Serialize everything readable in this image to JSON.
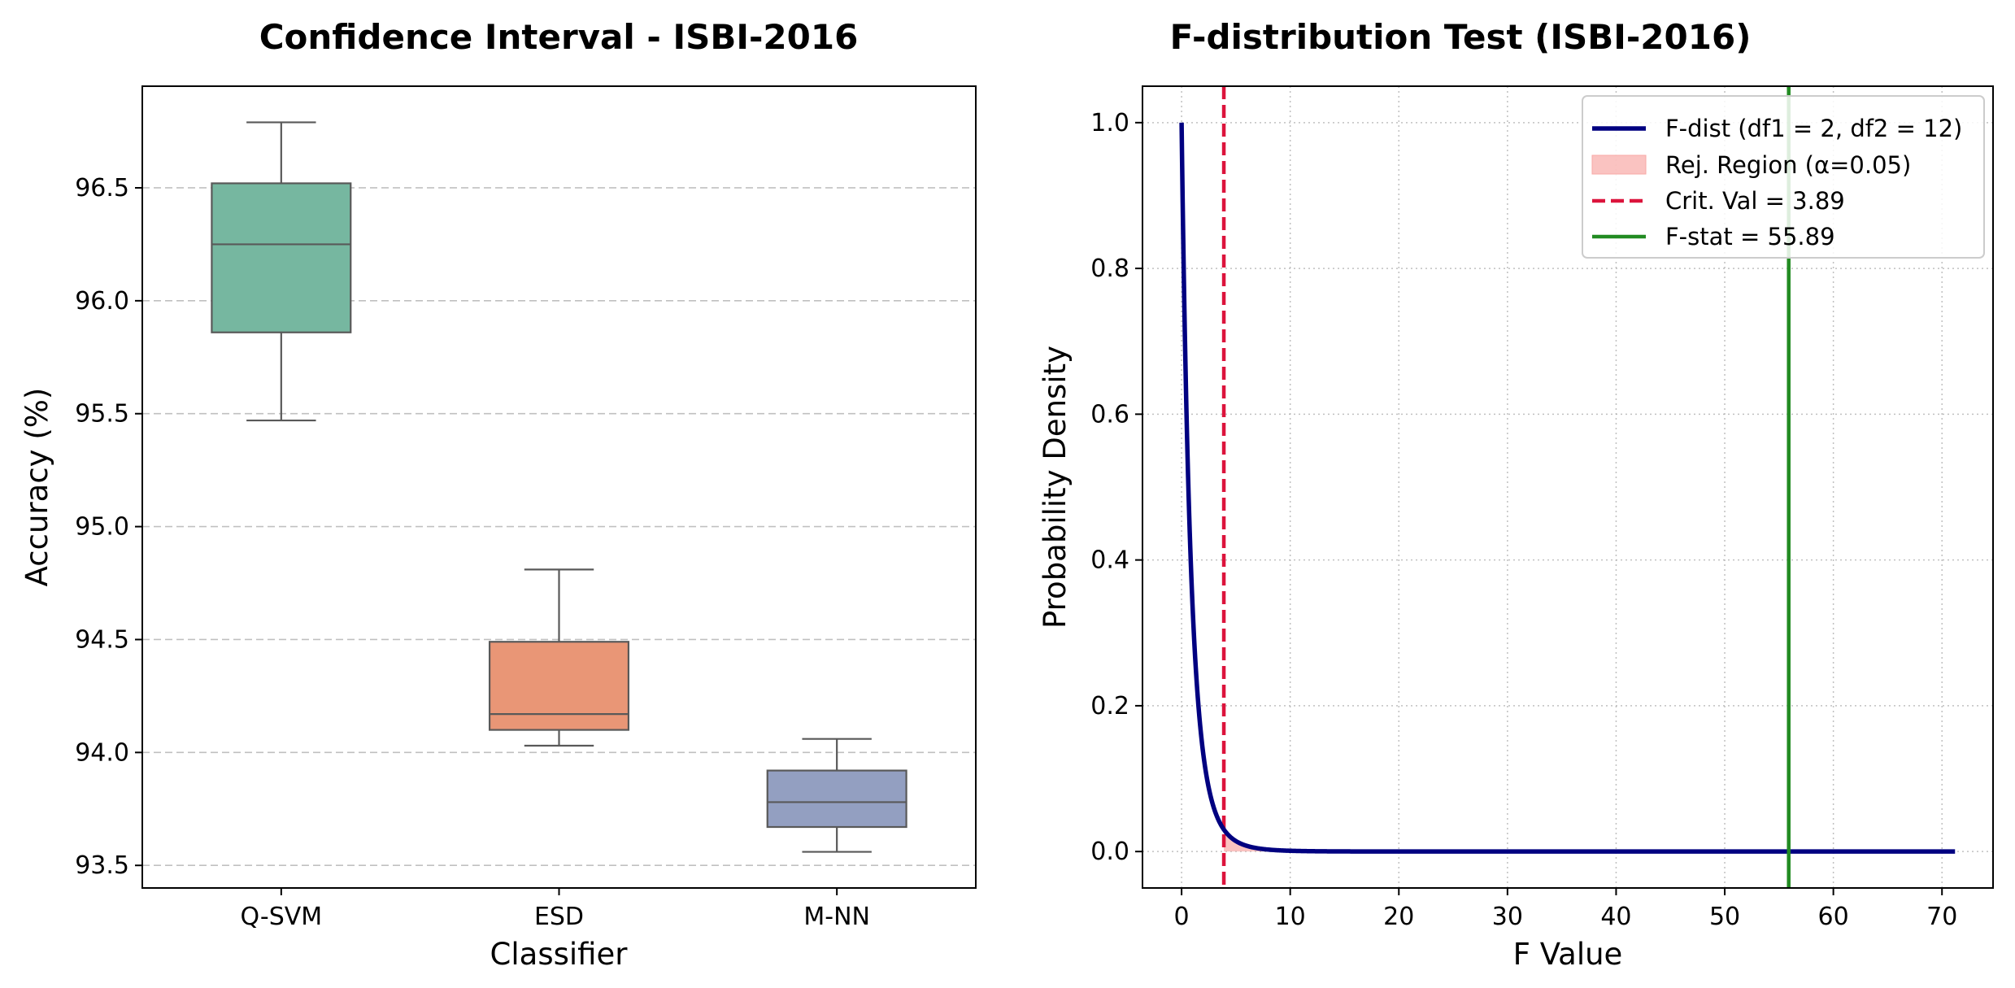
{
  "chart_data": [
    {
      "type": "box",
      "title": "Confidence Interval - ISBI-2016",
      "xlabel": "Classifier",
      "ylabel": "Accuracy (%)",
      "ylim": [
        93.4,
        96.95
      ],
      "yticks": [
        93.5,
        94.0,
        94.5,
        95.0,
        95.5,
        96.0,
        96.5
      ],
      "ytick_labels": [
        "93.5",
        "94.0",
        "94.5",
        "95.0",
        "95.5",
        "96.0",
        "96.5"
      ],
      "grid": "y-dashed",
      "categories": [
        "Q-SVM",
        "ESD",
        "M-NN"
      ],
      "boxes": [
        {
          "name": "Q-SVM",
          "whisker_low": 95.47,
          "q1": 95.86,
          "median": 96.25,
          "q3": 96.52,
          "whisker_high": 96.79,
          "color": "#76b7a0"
        },
        {
          "name": "ESD",
          "whisker_low": 94.03,
          "q1": 94.1,
          "median": 94.17,
          "q3": 94.49,
          "whisker_high": 94.81,
          "color": "#e99676"
        },
        {
          "name": "M-NN",
          "whisker_low": 93.56,
          "q1": 93.67,
          "median": 93.78,
          "q3": 93.92,
          "whisker_high": 94.06,
          "color": "#939fc1"
        }
      ]
    },
    {
      "type": "line",
      "title": "F-distribution Test (ISBI-2016)",
      "xlabel": "F Value",
      "ylabel": "Probability Density",
      "xlim": [
        -3.6,
        74.7
      ],
      "ylim": [
        -0.05,
        1.05
      ],
      "xticks": [
        0,
        10,
        20,
        30,
        40,
        50,
        60,
        70
      ],
      "xtick_labels": [
        "0",
        "10",
        "20",
        "30",
        "40",
        "50",
        "60",
        "70"
      ],
      "yticks": [
        0.0,
        0.2,
        0.4,
        0.6,
        0.8,
        1.0
      ],
      "ytick_labels": [
        "0.0",
        "0.2",
        "0.4",
        "0.6",
        "0.8",
        "1.0"
      ],
      "grid": "both-dotted",
      "legend_position": "top-right",
      "series": [
        {
          "name": "F-dist (df1 = 2, df2 = 12)",
          "kind": "curve",
          "df1": 2,
          "df2": 12,
          "x_range": [
            0,
            71.2
          ],
          "color": "#000080"
        },
        {
          "name": "Rej. Region (α=0.05)",
          "kind": "fill",
          "x_from": 3.89,
          "color": "#f8aaa6"
        },
        {
          "name": "Crit. Val = 3.89",
          "kind": "vline-dashed",
          "x": 3.89,
          "color": "#dc143c"
        },
        {
          "name": "F-stat = 55.89",
          "kind": "vline",
          "x": 55.89,
          "color": "#228b22"
        }
      ]
    }
  ]
}
